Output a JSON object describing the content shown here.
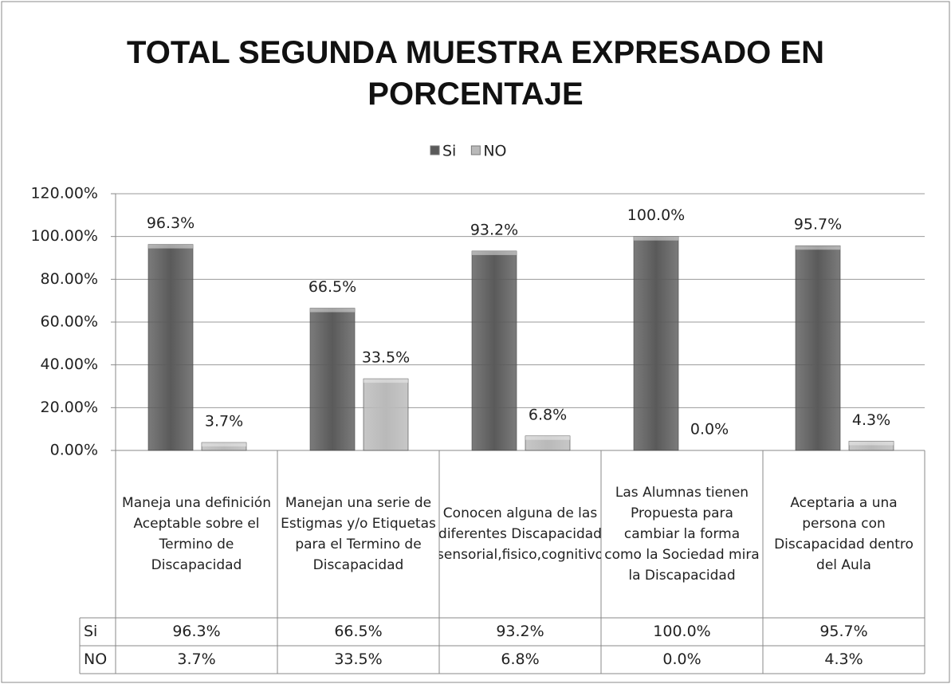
{
  "chart_data": {
    "type": "bar",
    "title": "TOTAL SEGUNDA MUESTRA EXPRESADO EN PORCENTAJE",
    "categories": [
      "Maneja una definición Aceptable sobre el Termino de Discapacidad",
      "Manejan una serie de Estigmas y/o Etiquetas para el Termino de Discapacidad",
      "Conocen alguna de las diferentes Discapacidad (sensorial,fisico,cognitivo)",
      "Las Alumnas tienen Propuesta para cambiar la forma como la Sociedad mira la Discapacidad",
      "Aceptaria a una persona con Discapacidad dentro del Aula"
    ],
    "series": [
      {
        "name": "Si",
        "color": "#5a5a5a",
        "values": [
          96.3,
          66.5,
          93.2,
          100.0,
          95.7
        ],
        "value_labels": [
          "96.3%",
          "66.5%",
          "93.2%",
          "100.0%",
          "95.7%"
        ]
      },
      {
        "name": "NO",
        "color": "#b9b9b9",
        "values": [
          3.7,
          33.5,
          6.8,
          0.0,
          4.3
        ],
        "value_labels": [
          "3.7%",
          "33.5%",
          "6.8%",
          "0.0%",
          "4.3%"
        ]
      }
    ],
    "ylim": [
      0,
      120
    ],
    "yticks": [
      {
        "value": 0,
        "label": "0.00%"
      },
      {
        "value": 20,
        "label": "20.00%"
      },
      {
        "value": 40,
        "label": "40.00%"
      },
      {
        "value": 60,
        "label": "60.00%"
      },
      {
        "value": 80,
        "label": "80.00%"
      },
      {
        "value": 100,
        "label": "100.00%"
      },
      {
        "value": 120,
        "label": "120.00%"
      }
    ],
    "grid": true,
    "legend": "top"
  }
}
